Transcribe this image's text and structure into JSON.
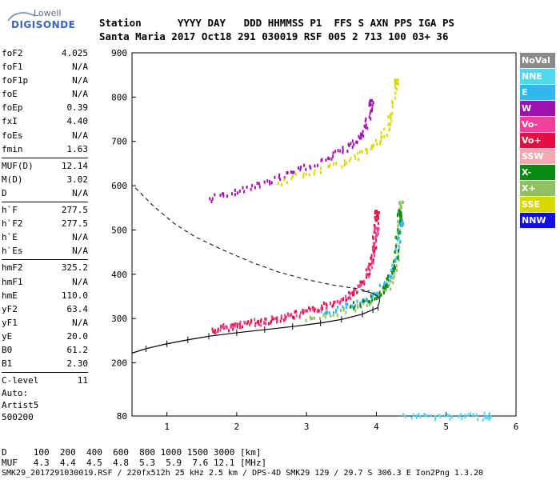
{
  "logo": {
    "top": "Lowell",
    "main": "DIGISONDE"
  },
  "header": {
    "row1": "Station      YYYY DAY   DDD HHMMSS P1  FFS S AXN PPS IGA PS",
    "row2": "Santa Maria 2017 Oct18 291 030019 RSF 005 2 713 100 03+ 36"
  },
  "params": {
    "group1": [
      {
        "label": "foF2",
        "value": "4.025"
      },
      {
        "label": "foF1",
        "value": "N/A"
      },
      {
        "label": "foF1p",
        "value": "N/A"
      },
      {
        "label": "foE",
        "value": "N/A"
      },
      {
        "label": "foEp",
        "value": "0.39"
      },
      {
        "label": "fxI",
        "value": "4.40"
      },
      {
        "label": "foEs",
        "value": "N/A"
      },
      {
        "label": "fmin",
        "value": "1.63"
      }
    ],
    "group2": [
      {
        "label": "MUF(D)",
        "value": "12.14"
      },
      {
        "label": "M(D)",
        "value": "3.02"
      },
      {
        "label": "D",
        "value": "N/A"
      }
    ],
    "group3": [
      {
        "label": "h`F",
        "value": "277.5"
      },
      {
        "label": "h`F2",
        "value": "277.5"
      },
      {
        "label": "h`E",
        "value": "N/A"
      },
      {
        "label": "h`Es",
        "value": "N/A"
      }
    ],
    "group4": [
      {
        "label": "hmF2",
        "value": "325.2"
      },
      {
        "label": "hmF1",
        "value": "N/A"
      },
      {
        "label": "hmE",
        "value": "110.0"
      },
      {
        "label": "yF2",
        "value": "63.4"
      },
      {
        "label": "yF1",
        "value": "N/A"
      },
      {
        "label": "yE",
        "value": "20.0"
      },
      {
        "label": "B0",
        "value": "61.2"
      },
      {
        "label": "B1",
        "value": "2.30"
      }
    ],
    "group5": [
      {
        "label": "C-level",
        "value": "11"
      }
    ]
  },
  "auto": {
    "line1": "Auto:",
    "line2": "Artist5",
    "line3": "500200"
  },
  "legend": [
    {
      "label": "NoVal",
      "color": "#8a8a8a"
    },
    {
      "label": "NNE",
      "color": "#4fd8f0"
    },
    {
      "label": "E",
      "color": "#2fb8ef"
    },
    {
      "label": "W",
      "color": "#a010b0"
    },
    {
      "label": "Vo-",
      "color": "#f0409a"
    },
    {
      "label": "Vo+",
      "color": "#e01040"
    },
    {
      "label": "SSW",
      "color": "#f4a8b0"
    },
    {
      "label": "X-",
      "color": "#0a8a10"
    },
    {
      "label": "X+",
      "color": "#90c060"
    },
    {
      "label": "SSE",
      "color": "#d8d800"
    },
    {
      "label": "NNW",
      "color": "#1010d8"
    }
  ],
  "footer": {
    "row1": "D     100  200  400  600  800 1000 1500 3000 [km]",
    "row2": "MUF   4.3  4.4  4.5  4.8  5.3  5.9  7.6 12.1 [MHz]",
    "row3": "SMK29_2017291030019.RSF / 220fx512h 25 kHz 2.5 km / DPS-4D SMK29 129 / 29.7 S 306.3 E Ion2Png 1.3.20"
  },
  "chart_data": {
    "type": "scatter",
    "title": "",
    "xlabel": "",
    "ylabel": "",
    "xlim": [
      0.5,
      6.0
    ],
    "ylim": [
      80,
      900
    ],
    "xticks": [
      1,
      2,
      3,
      4,
      5,
      6
    ],
    "yticks": [
      80,
      200,
      300,
      400,
      500,
      600,
      700,
      800,
      900
    ],
    "series": [
      {
        "name": "Vo+",
        "color": "#e01040",
        "x": [
          1.65,
          1.8,
          2.0,
          2.2,
          2.4,
          2.6,
          2.8,
          3.0,
          3.2,
          3.4,
          3.6,
          3.75,
          3.85,
          3.92,
          3.96,
          3.98,
          4.0
        ],
        "y": [
          275,
          282,
          288,
          293,
          298,
          303,
          310,
          318,
          328,
          340,
          356,
          374,
          398,
          430,
          470,
          510,
          540
        ]
      },
      {
        "name": "Vo-",
        "color": "#f0409a",
        "x": [
          1.7,
          2.0,
          2.4,
          2.8,
          3.2,
          3.6,
          3.8,
          3.95,
          4.0
        ],
        "y": [
          278,
          287,
          298,
          309,
          326,
          352,
          384,
          440,
          500
        ]
      },
      {
        "name": "X+",
        "color": "#90c060",
        "x": [
          3.0,
          3.3,
          3.6,
          3.9,
          4.1,
          4.2,
          4.26,
          4.3,
          4.32,
          4.34
        ],
        "y": [
          300,
          312,
          325,
          340,
          360,
          385,
          420,
          470,
          520,
          560
        ]
      },
      {
        "name": "E",
        "color": "#2fb8ef",
        "x": [
          3.2,
          3.5,
          3.8,
          4.0,
          4.15,
          4.25,
          4.3,
          4.35
        ],
        "y": [
          318,
          328,
          342,
          360,
          385,
          420,
          470,
          520
        ]
      },
      {
        "name": "X-",
        "color": "#0a8a10",
        "x": [
          3.6,
          3.9,
          4.1,
          4.2,
          4.28,
          4.32
        ],
        "y": [
          330,
          345,
          368,
          400,
          450,
          540
        ]
      },
      {
        "name": "W",
        "color": "#a010b0",
        "x": [
          1.6,
          1.9,
          2.2,
          2.5,
          2.8,
          3.1,
          3.4,
          3.6,
          3.75,
          3.85,
          3.92
        ],
        "y": [
          572,
          586,
          600,
          615,
          632,
          652,
          672,
          692,
          712,
          740,
          790
        ]
      },
      {
        "name": "SSE",
        "color": "#d8d800",
        "x": [
          2.6,
          3.0,
          3.4,
          3.7,
          3.9,
          4.05,
          4.15,
          4.22,
          4.28
        ],
        "y": [
          610,
          628,
          648,
          668,
          686,
          705,
          730,
          770,
          840
        ]
      },
      {
        "name": "NNE",
        "color": "#4fd8f0",
        "x": [
          4.4,
          4.7,
          5.0,
          5.3,
          5.6
        ],
        "y": [
          82,
          82,
          82,
          82,
          82
        ]
      }
    ],
    "profile": {
      "x": [
        0.5,
        0.7,
        1.0,
        1.3,
        1.6,
        2.0,
        2.4,
        2.8,
        3.2,
        3.5,
        3.8,
        3.95,
        4.025
      ],
      "y": [
        222,
        232,
        243,
        252,
        260,
        268,
        275,
        282,
        290,
        298,
        310,
        320,
        325
      ]
    },
    "dashed_curve": {
      "x": [
        0.55,
        0.8,
        1.1,
        1.4,
        1.8,
        2.2,
        2.6,
        3.0,
        3.4,
        3.7,
        3.9
      ],
      "y": [
        595,
        555,
        515,
        485,
        455,
        428,
        405,
        388,
        375,
        368,
        362
      ]
    }
  }
}
